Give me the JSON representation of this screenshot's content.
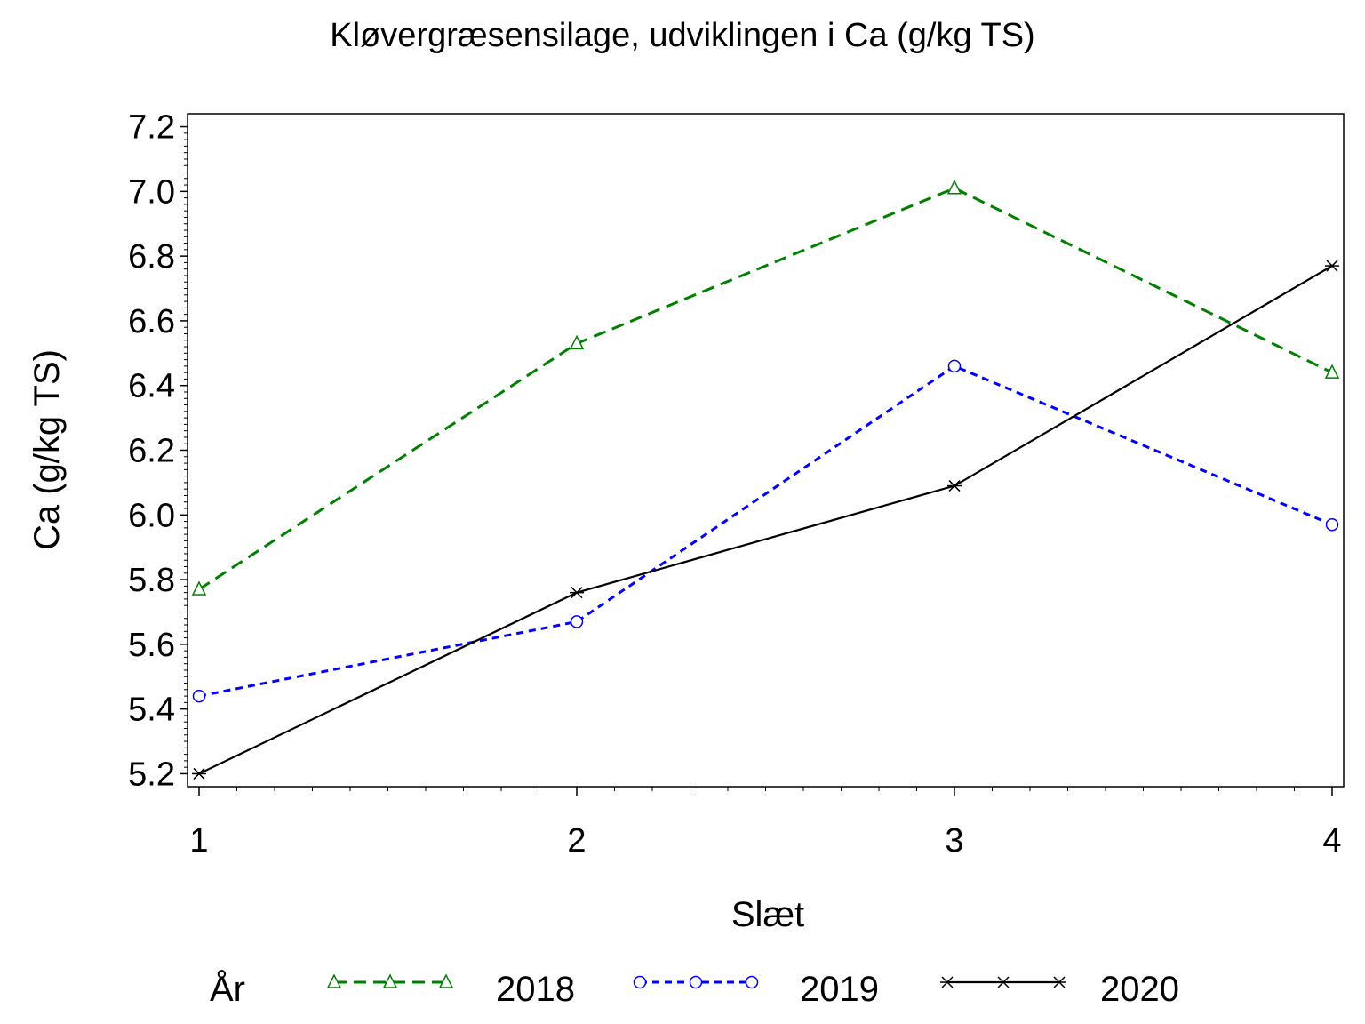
{
  "chart_data": {
    "type": "line",
    "title": "Kløvergræsensilage, udviklingen i Ca (g/kg TS)",
    "xlabel": "Slæt",
    "ylabel": "Ca (g/kg TS)",
    "x": [
      1,
      2,
      3,
      4
    ],
    "x_tick_labels": [
      "1",
      "2",
      "3",
      "4"
    ],
    "xlim": [
      1,
      4
    ],
    "ylim": [
      5.16,
      7.24
    ],
    "y_ticks": [
      5.2,
      5.4,
      5.6,
      5.8,
      6.0,
      6.2,
      6.4,
      6.6,
      6.8,
      7.0,
      7.2
    ],
    "y_tick_labels": [
      "5.2",
      "5.4",
      "5.6",
      "5.8",
      "6.0",
      "6.2",
      "6.4",
      "6.6",
      "6.8",
      "7.0",
      "7.2"
    ],
    "grid": false,
    "legend": {
      "title": "År",
      "placement": "bottom"
    },
    "series": [
      {
        "name": "2018",
        "values": [
          5.77,
          6.53,
          7.01,
          6.44
        ],
        "color": "#008000",
        "dash": "dashed",
        "marker": "triangle"
      },
      {
        "name": "2019",
        "values": [
          5.44,
          5.67,
          6.46,
          5.97
        ],
        "color": "#0000ff",
        "dash": "dotted",
        "marker": "circle"
      },
      {
        "name": "2020",
        "values": [
          5.2,
          5.76,
          6.09,
          6.77
        ],
        "color": "#000000",
        "dash": "solid",
        "marker": "star"
      }
    ]
  }
}
